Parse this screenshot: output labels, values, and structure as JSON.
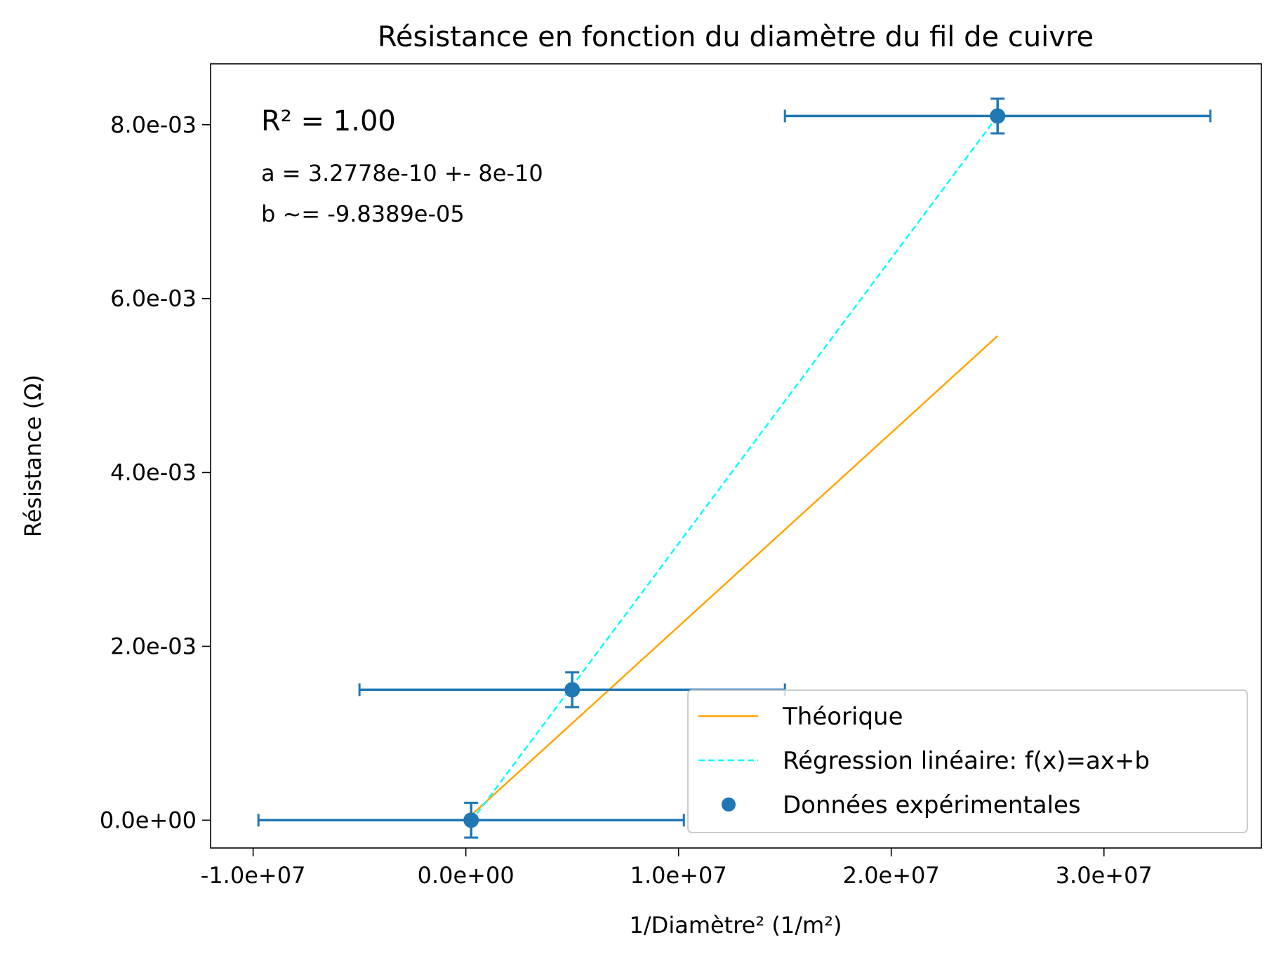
{
  "chart_data": {
    "type": "scatter",
    "title": "Résistance en fonction du diamètre du fil de cuivre",
    "xlabel": "1/Diamètre² (1/m²)",
    "ylabel": "Résistance (Ω)",
    "xlim": [
      -12000000,
      37400000
    ],
    "ylim": [
      -0.00032,
      0.0087
    ],
    "x_ticks": [
      -10000000,
      0,
      10000000,
      20000000,
      30000000
    ],
    "x_tick_labels": [
      "-1.0e+07",
      "0.0e+00",
      "1.0e+07",
      "2.0e+07",
      "3.0e+07"
    ],
    "y_ticks": [
      0,
      0.002,
      0.004,
      0.006,
      0.008
    ],
    "y_tick_labels": [
      "0.0e+00",
      "2.0e-03",
      "4.0e-03",
      "6.0e-03",
      "8.0e-03"
    ],
    "grid": false,
    "legend_position": "lower-right",
    "annotations": {
      "r2_text": "R² = 1.00",
      "a_text": "a = 3.2778e-10 +- 8e-10",
      "b_text": "b ~= -9.8389e-05"
    },
    "series": [
      {
        "name": "Théorique",
        "kind": "line",
        "color": "#ffa500",
        "dash": "solid",
        "points": [
          [
            250000,
            5.57e-05
          ],
          [
            25000000,
            0.00557
          ]
        ]
      },
      {
        "name": "Régression linéaire: f(x)=ax+b",
        "kind": "line",
        "color": "#00ffff",
        "dash": "dashed",
        "points": [
          [
            250000,
            -1.64e-05
          ],
          [
            25000000,
            0.0081
          ]
        ]
      },
      {
        "name": "Données expérimentales",
        "kind": "errorbar",
        "color": "#1f77b4",
        "points": [
          {
            "x": 250000,
            "y": 0.0,
            "xerr": 10000000,
            "yerr": 0.0002
          },
          {
            "x": 5000000,
            "y": 0.0015,
            "xerr": 10000000,
            "yerr": 0.0002
          },
          {
            "x": 25000000,
            "y": 0.0081,
            "xerr": 10000000,
            "yerr": 0.0002
          }
        ]
      }
    ]
  }
}
